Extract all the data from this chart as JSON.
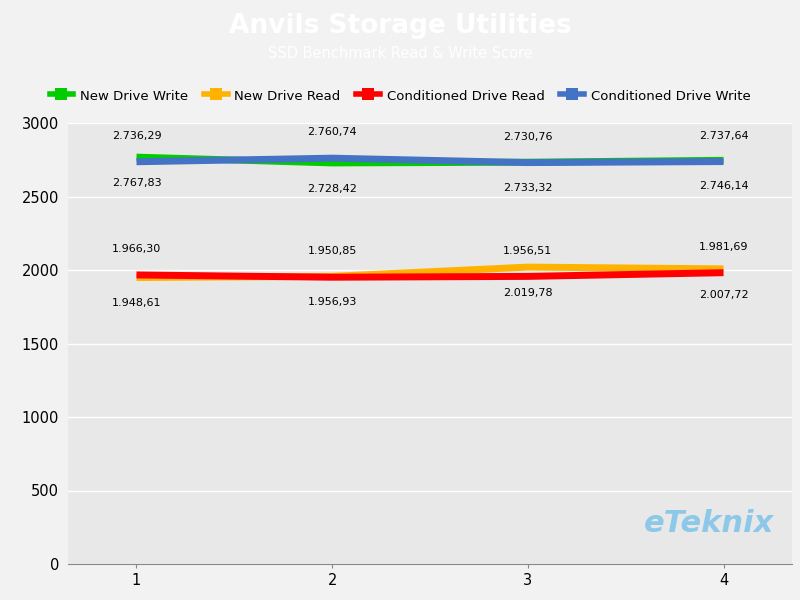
{
  "title": "Anvils Storage Utilities",
  "subtitle": "SSD Benchmark Read & Write Score",
  "title_bg_color": "#19AADF",
  "title_text_color": "#FFFFFF",
  "plot_bg_color": "#E8E8E8",
  "legend_bg_color": "#F2F2F2",
  "x_values": [
    1,
    2,
    3,
    4
  ],
  "series": {
    "New Drive Write": {
      "color": "#00CC00",
      "values": [
        2767.83,
        2728.42,
        2733.32,
        2746.14
      ],
      "label_values": [
        "2.767,83",
        "2.728,42",
        "2.733,32",
        "2.746,14"
      ],
      "position": "below"
    },
    "New Drive Read": {
      "color": "#FFB300",
      "values": [
        1948.61,
        1956.93,
        2019.78,
        2007.72
      ],
      "label_values": [
        "1.948,61",
        "1.956,93",
        "2.019,78",
        "2.007,72"
      ],
      "position": "below"
    },
    "Conditioned Drive Read": {
      "color": "#FF0000",
      "values": [
        1966.3,
        1950.85,
        1956.51,
        1981.69
      ],
      "label_values": [
        "1.966,30",
        "1.950,85",
        "1.956,51",
        "1.981,69"
      ],
      "position": "above"
    },
    "Conditioned Drive Write": {
      "color": "#4472C4",
      "values": [
        2736.29,
        2760.74,
        2730.76,
        2737.64
      ],
      "label_values": [
        "2.736,29",
        "2.760,74",
        "2.730,76",
        "2.737,64"
      ],
      "position": "above"
    }
  },
  "ylim": [
    0,
    3000
  ],
  "yticks": [
    0,
    500,
    1000,
    1500,
    2000,
    2500,
    3000
  ],
  "xlim": [
    0.65,
    4.35
  ],
  "xticks": [
    1,
    2,
    3,
    4
  ],
  "watermark": "eTeknix",
  "watermark_color": "#8EC8E8",
  "linewidth": 5
}
